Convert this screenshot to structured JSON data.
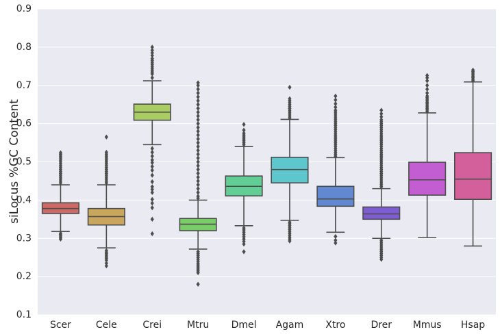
{
  "chart_data": {
    "type": "box",
    "title": "",
    "xlabel": "",
    "ylabel": "siLocus %GC Content",
    "ylim": [
      0.1,
      0.9
    ],
    "yticks": [
      "0.1",
      "0.2",
      "0.3",
      "0.4",
      "0.5",
      "0.6",
      "0.7",
      "0.8",
      "0.9"
    ],
    "grid": true,
    "categories": [
      "Scer",
      "Cele",
      "Crei",
      "Mtru",
      "Dmel",
      "Agam",
      "Xtro",
      "Drer",
      "Mmus",
      "Hsap"
    ],
    "series": [
      {
        "category": "Scer",
        "color": "#cd6a67",
        "whisker_low": 0.318,
        "q1": 0.365,
        "median": 0.378,
        "q3": 0.393,
        "whisker_high": 0.44,
        "outliers": [
          0.298,
          0.302,
          0.306,
          0.31,
          0.313,
          0.445,
          0.45,
          0.455,
          0.46,
          0.465,
          0.47,
          0.475,
          0.48,
          0.485,
          0.49,
          0.495,
          0.5,
          0.505,
          0.51,
          0.515,
          0.52,
          0.524
        ]
      },
      {
        "category": "Cele",
        "color": "#c9a65e",
        "whisker_low": 0.275,
        "q1": 0.335,
        "median": 0.357,
        "q3": 0.378,
        "whisker_high": 0.44,
        "outliers": [
          0.228,
          0.235,
          0.243,
          0.248,
          0.252,
          0.256,
          0.26,
          0.264,
          0.268,
          0.445,
          0.45,
          0.455,
          0.46,
          0.465,
          0.47,
          0.475,
          0.48,
          0.485,
          0.49,
          0.495,
          0.5,
          0.505,
          0.51,
          0.515,
          0.52,
          0.525,
          0.565
        ]
      },
      {
        "category": "Crei",
        "color": "#a9cd63",
        "whisker_low": 0.545,
        "q1": 0.609,
        "median": 0.63,
        "q3": 0.651,
        "whisker_high": 0.712,
        "outliers": [
          0.312,
          0.35,
          0.38,
          0.392,
          0.402,
          0.42,
          0.428,
          0.435,
          0.448,
          0.465,
          0.478,
          0.488,
          0.498,
          0.505,
          0.515,
          0.525,
          0.535,
          0.72,
          0.73,
          0.735,
          0.74,
          0.745,
          0.75,
          0.755,
          0.76,
          0.765,
          0.77,
          0.778,
          0.785,
          0.792,
          0.8
        ]
      },
      {
        "category": "Mtru",
        "color": "#78cd66",
        "whisker_low": 0.272,
        "q1": 0.32,
        "median": 0.337,
        "q3": 0.352,
        "whisker_high": 0.4,
        "outliers": [
          0.18,
          0.21,
          0.215,
          0.22,
          0.225,
          0.23,
          0.235,
          0.24,
          0.245,
          0.25,
          0.255,
          0.26,
          0.265,
          0.405,
          0.41,
          0.42,
          0.43,
          0.44,
          0.45,
          0.46,
          0.47,
          0.48,
          0.49,
          0.5,
          0.51,
          0.52,
          0.53,
          0.54,
          0.55,
          0.56,
          0.57,
          0.58,
          0.59,
          0.6,
          0.61,
          0.62,
          0.63,
          0.64,
          0.65,
          0.66,
          0.67,
          0.68,
          0.69,
          0.7,
          0.707
        ]
      },
      {
        "category": "Dmel",
        "color": "#63cd96",
        "whisker_low": 0.333,
        "q1": 0.411,
        "median": 0.436,
        "q3": 0.463,
        "whisker_high": 0.54,
        "outliers": [
          0.265,
          0.285,
          0.292,
          0.298,
          0.304,
          0.31,
          0.316,
          0.322,
          0.327,
          0.545,
          0.55,
          0.555,
          0.56,
          0.565,
          0.57,
          0.575,
          0.583,
          0.598
        ]
      },
      {
        "category": "Agam",
        "color": "#5ec6cd",
        "whisker_low": 0.347,
        "q1": 0.445,
        "median": 0.48,
        "q3": 0.512,
        "whisker_high": 0.611,
        "outliers": [
          0.293,
          0.298,
          0.303,
          0.308,
          0.313,
          0.318,
          0.323,
          0.328,
          0.333,
          0.338,
          0.342,
          0.615,
          0.62,
          0.625,
          0.63,
          0.635,
          0.64,
          0.645,
          0.65,
          0.655,
          0.66,
          0.665,
          0.695
        ]
      },
      {
        "category": "Xtro",
        "color": "#6288d1",
        "whisker_low": 0.316,
        "q1": 0.384,
        "median": 0.403,
        "q3": 0.436,
        "whisker_high": 0.511,
        "outliers": [
          0.288,
          0.295,
          0.305,
          0.515,
          0.52,
          0.525,
          0.53,
          0.535,
          0.54,
          0.545,
          0.55,
          0.555,
          0.56,
          0.565,
          0.57,
          0.575,
          0.58,
          0.585,
          0.59,
          0.595,
          0.6,
          0.605,
          0.61,
          0.615,
          0.62,
          0.625,
          0.63,
          0.635,
          0.643,
          0.652,
          0.662,
          0.672
        ]
      },
      {
        "category": "Drer",
        "color": "#7e5cd1",
        "whisker_low": 0.3,
        "q1": 0.35,
        "median": 0.364,
        "q3": 0.382,
        "whisker_high": 0.43,
        "outliers": [
          0.245,
          0.25,
          0.255,
          0.26,
          0.265,
          0.27,
          0.275,
          0.28,
          0.285,
          0.29,
          0.295,
          0.435,
          0.44,
          0.445,
          0.45,
          0.455,
          0.46,
          0.465,
          0.47,
          0.475,
          0.48,
          0.485,
          0.49,
          0.495,
          0.5,
          0.505,
          0.51,
          0.515,
          0.52,
          0.525,
          0.53,
          0.535,
          0.54,
          0.545,
          0.55,
          0.555,
          0.56,
          0.565,
          0.57,
          0.575,
          0.58,
          0.585,
          0.59,
          0.595,
          0.6,
          0.605,
          0.61,
          0.618,
          0.626,
          0.635
        ]
      },
      {
        "category": "Mmus",
        "color": "#c25ed1",
        "whisker_low": 0.302,
        "q1": 0.413,
        "median": 0.453,
        "q3": 0.499,
        "whisker_high": 0.628,
        "outliers": [
          0.632,
          0.636,
          0.64,
          0.644,
          0.648,
          0.652,
          0.656,
          0.66,
          0.664,
          0.668,
          0.672,
          0.68,
          0.69,
          0.7,
          0.712,
          0.72,
          0.726
        ]
      },
      {
        "category": "Hsap",
        "color": "#d4609b",
        "whisker_low": 0.28,
        "q1": 0.402,
        "median": 0.455,
        "q3": 0.524,
        "whisker_high": 0.709,
        "outliers": [
          0.712,
          0.716,
          0.72,
          0.724,
          0.728,
          0.732,
          0.736,
          0.74
        ]
      }
    ]
  }
}
